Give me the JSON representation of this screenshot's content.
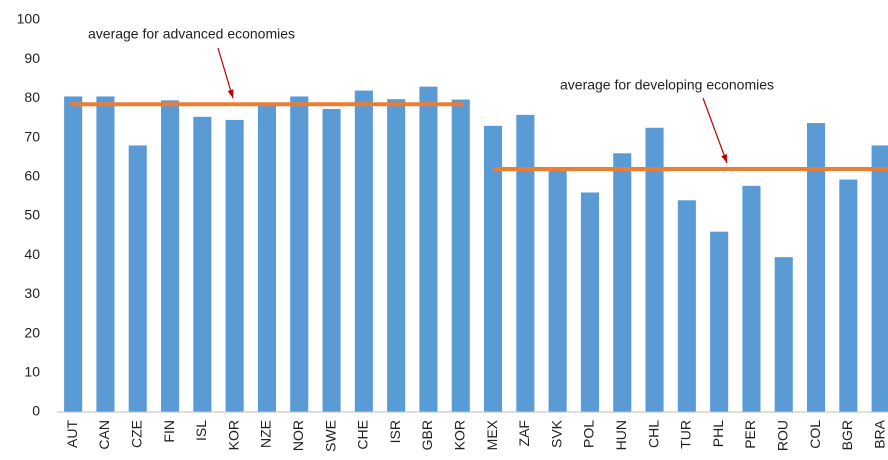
{
  "chart_data": {
    "type": "bar",
    "categories": [
      "AUT",
      "CAN",
      "CZE",
      "FIN",
      "ISL",
      "KOR",
      "NZE",
      "NOR",
      "SWE",
      "CHE",
      "ISR",
      "GBR",
      "KOR",
      "MEX",
      "ZAF",
      "SVK",
      "POL",
      "HUN",
      "CHL",
      "TUR",
      "PHL",
      "PER",
      "ROU",
      "COL",
      "BGR",
      "BRA"
    ],
    "values": [
      80.5,
      80.5,
      68,
      79.5,
      75.3,
      74.5,
      78.5,
      80.5,
      77.3,
      82,
      79.8,
      83,
      79.7,
      73,
      75.8,
      62,
      56,
      66,
      72.5,
      54,
      46,
      57.7,
      39.5,
      73.7,
      59.3,
      68
    ],
    "color": "#5b9bd5",
    "ylim": [
      0,
      100
    ],
    "yticks": [
      0,
      10,
      20,
      30,
      40,
      50,
      60,
      70,
      80,
      90,
      100
    ],
    "grid": false,
    "annotations": [
      {
        "text": "average for advanced economies",
        "value": 78.5,
        "color": "#ed7d31"
      },
      {
        "text": "average for developing economies",
        "value": 62,
        "color": "#ed7d31"
      }
    ]
  }
}
